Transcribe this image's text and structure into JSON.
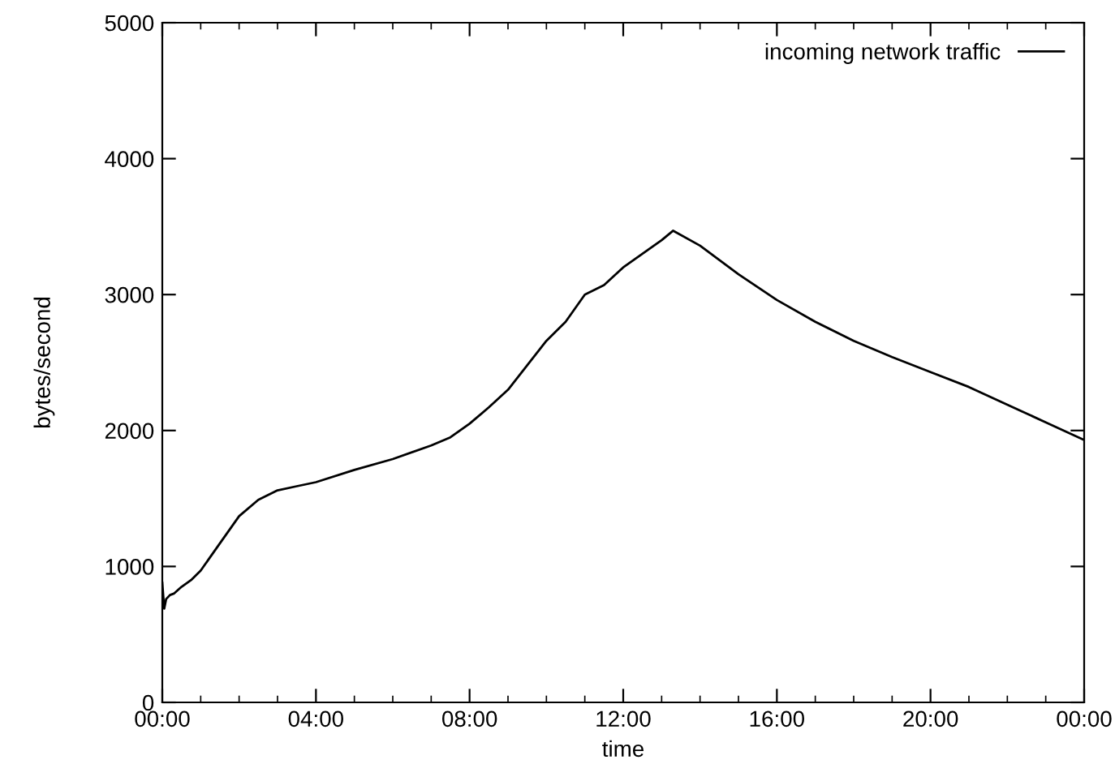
{
  "chart_data": {
    "type": "line",
    "xlabel": "time",
    "ylabel": "bytes/second",
    "series": [
      {
        "name": "incoming network traffic",
        "color": "#000000",
        "x": [
          0,
          0.05,
          0.1,
          0.2,
          0.3,
          0.5,
          0.75,
          1,
          1.5,
          2,
          2.5,
          3,
          3.5,
          4,
          5,
          6,
          7,
          7.5,
          8,
          8.5,
          9,
          9.5,
          10,
          10.5,
          11,
          11.5,
          12,
          12.5,
          13,
          13.3,
          14,
          15,
          16,
          17,
          18,
          19,
          20,
          21,
          22,
          23,
          24
        ],
        "values": [
          880,
          690,
          760,
          790,
          800,
          850,
          900,
          970,
          1170,
          1370,
          1490,
          1560,
          1590,
          1620,
          1710,
          1790,
          1890,
          1950,
          2050,
          2170,
          2300,
          2480,
          2660,
          2800,
          3000,
          3070,
          3200,
          3300,
          3400,
          3470,
          3360,
          3150,
          2960,
          2800,
          2660,
          2540,
          2430,
          2320,
          2190,
          2060,
          1930
        ]
      }
    ],
    "xlim": [
      0,
      24
    ],
    "xticks": [
      {
        "value": 0,
        "label": "00:00"
      },
      {
        "value": 1,
        "label": null
      },
      {
        "value": 2,
        "label": null
      },
      {
        "value": 3,
        "label": null
      },
      {
        "value": 4,
        "label": "04:00"
      },
      {
        "value": 5,
        "label": null
      },
      {
        "value": 6,
        "label": null
      },
      {
        "value": 7,
        "label": null
      },
      {
        "value": 8,
        "label": "08:00"
      },
      {
        "value": 9,
        "label": null
      },
      {
        "value": 10,
        "label": null
      },
      {
        "value": 11,
        "label": null
      },
      {
        "value": 12,
        "label": "12:00"
      },
      {
        "value": 13,
        "label": null
      },
      {
        "value": 14,
        "label": null
      },
      {
        "value": 15,
        "label": null
      },
      {
        "value": 16,
        "label": "16:00"
      },
      {
        "value": 17,
        "label": null
      },
      {
        "value": 18,
        "label": null
      },
      {
        "value": 19,
        "label": null
      },
      {
        "value": 20,
        "label": "20:00"
      },
      {
        "value": 21,
        "label": null
      },
      {
        "value": 22,
        "label": null
      },
      {
        "value": 23,
        "label": null
      },
      {
        "value": 24,
        "label": "00:00"
      }
    ],
    "ylim": [
      0,
      5000
    ],
    "yticks": [
      0,
      1000,
      2000,
      3000,
      4000,
      5000
    ],
    "grid": false,
    "legend": "top right",
    "marker": "none",
    "line_style": "solid"
  }
}
